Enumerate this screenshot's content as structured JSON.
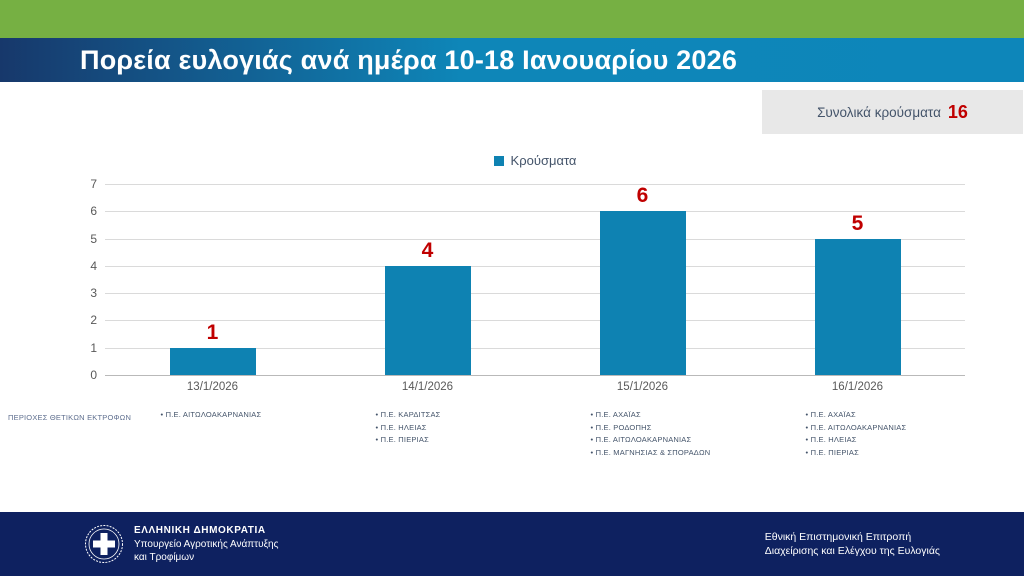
{
  "header": {
    "title": "Πορεία ευλογιάς ανά ημέρα 10-18 Ιανουαρίου 2026"
  },
  "summary_box": {
    "label": "Συνολικά κρούσματα",
    "value": "16"
  },
  "chart_data": {
    "type": "bar",
    "title": "",
    "categories": [
      "13/1/2026",
      "14/1/2026",
      "15/1/2026",
      "16/1/2026"
    ],
    "series": [
      {
        "name": "Κρούσματα",
        "values": [
          1,
          4,
          6,
          5
        ]
      }
    ],
    "data_labels": [
      "1",
      "4",
      "6",
      "5"
    ],
    "ylim": [
      0,
      7
    ],
    "ytick_step": 1,
    "grid": true,
    "legend_position": "top-center",
    "xlabel": "",
    "ylabel": ""
  },
  "regions": {
    "row_label": "ΠΕΡΙΟΧΕΣ ΘΕΤΙΚΩΝ ΕΚΤΡΟΦΩΝ",
    "columns": [
      [
        "Π.Ε. ΑΙΤΩΛΟΑΚΑΡΝΑΝΙΑΣ"
      ],
      [
        "Π.Ε. ΚΑΡΔΙΤΣΑΣ",
        "Π.Ε. ΗΛΕΙΑΣ",
        "Π.Ε. ΠΙΕΡΙΑΣ"
      ],
      [
        "Π.Ε. ΑΧΑΪΑΣ",
        "Π.Ε. ΡΟΔΟΠΗΣ",
        "Π.Ε. ΑΙΤΩΛΟΑΚΑΡΝΑΝΙΑΣ",
        "Π.Ε. ΜΑΓΝΗΣΙΑΣ & ΣΠΟΡΑΔΩΝ"
      ],
      [
        "Π.Ε. ΑΧΑΪΑΣ",
        "Π.Ε. ΑΙΤΩΛΟΑΚΑΡΝΑΝΙΑΣ",
        "Π.Ε. ΗΛΕΙΑΣ",
        "Π.Ε. ΠΙΕΡΙΑΣ"
      ]
    ]
  },
  "footer": {
    "left_title": "ΕΛΛΗΝΙΚΗ ΔΗΜΟΚΡΑΤΙΑ",
    "left_lines": [
      "Υπουργείο Αγροτικής Ανάπτυξης",
      "και Τροφίμων"
    ],
    "right_lines": [
      "Εθνική Επιστημονική Επιτροπή",
      "Διαχείρισης και Ελέγχου της Ευλογιάς"
    ]
  },
  "colors": {
    "accent_green": "#76b043",
    "header_blue": "#0e86b8",
    "header_navy": "#17386b",
    "bar_blue": "#0e82b2",
    "alert_red": "#c00000",
    "footer_navy": "#0e2160",
    "box_gray": "#e8e8e8",
    "text_slate": "#44546a"
  }
}
